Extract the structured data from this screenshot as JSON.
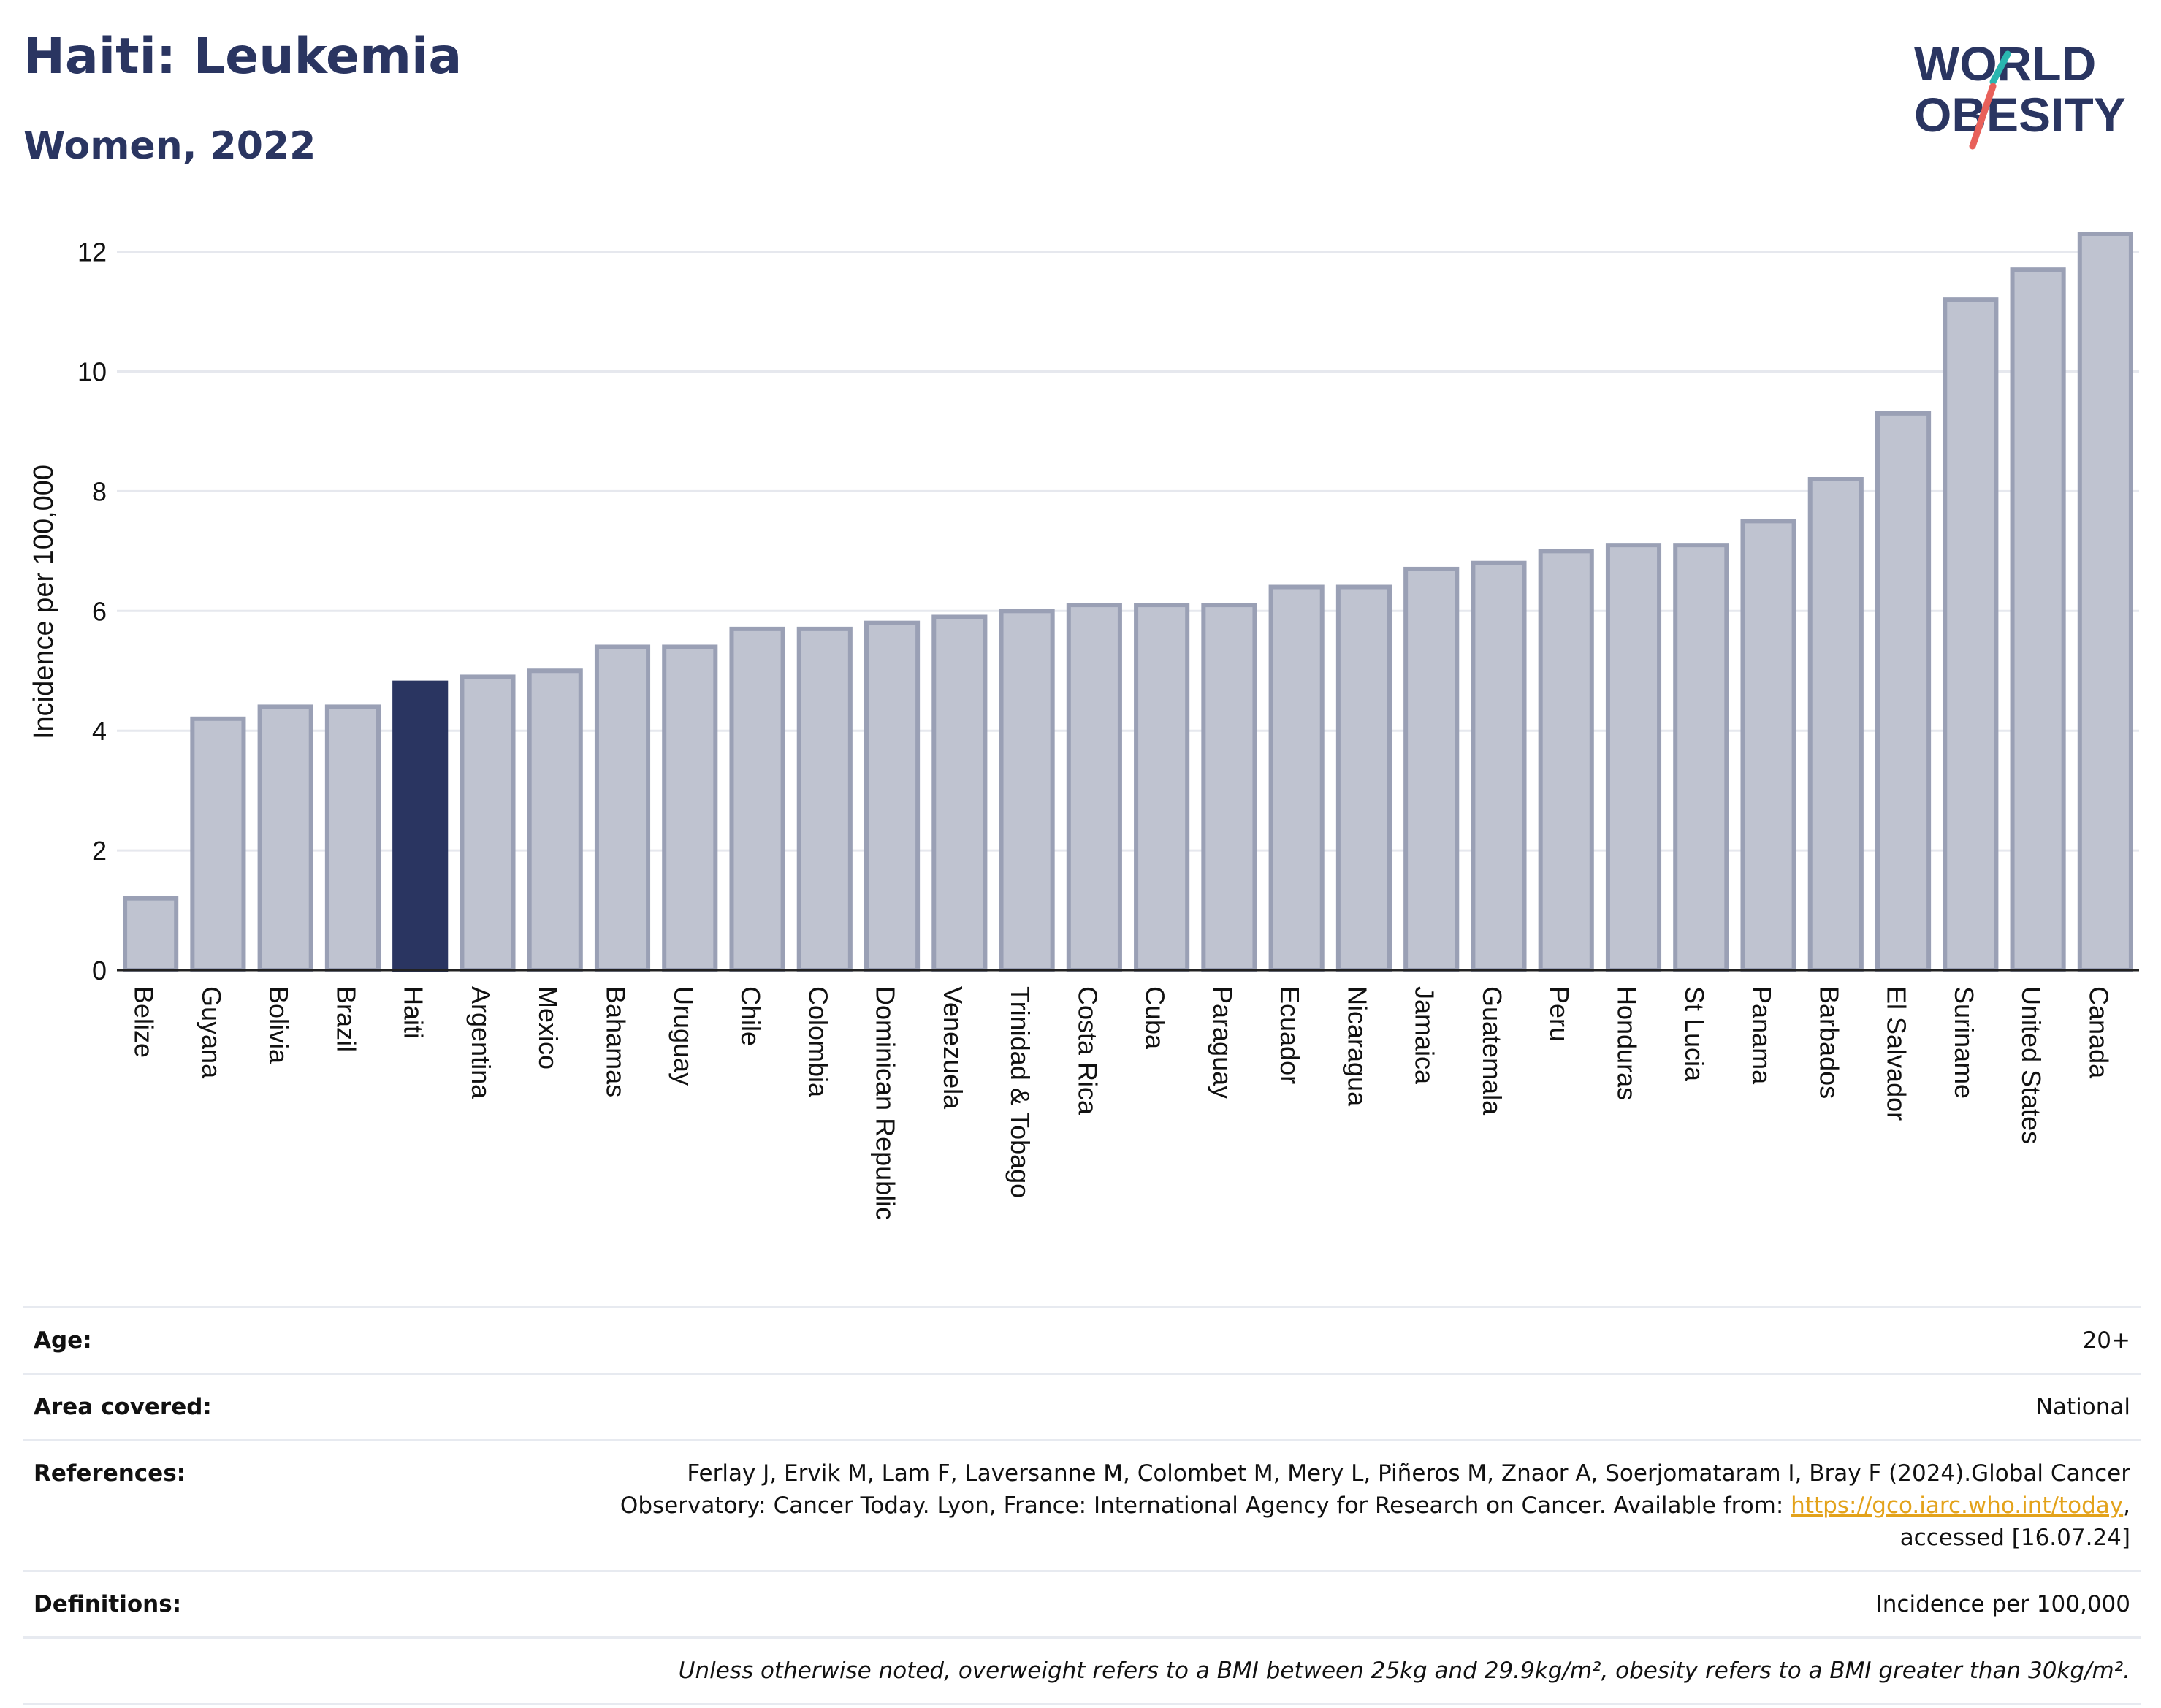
{
  "header": {
    "title": "Haiti: Leukemia",
    "subtitle": "Women, 2022",
    "logo_line1": "WORLD",
    "logo_line2": "OBESITY"
  },
  "colors": {
    "highlight_bar": "#2a3561",
    "other_bar": "#bfc3d0",
    "other_bar_border": "#9aa0b5",
    "title_text": "#2a3561",
    "link": "#e3a21a",
    "logo_teal": "#2ab6b0",
    "logo_red": "#e8605a"
  },
  "chart_data": {
    "type": "bar",
    "title": "Haiti: Leukemia",
    "subtitle": "Women, 2022",
    "xlabel": "",
    "ylabel": "Incidence per 100,000",
    "ylim": [
      0,
      12.3
    ],
    "yticks": [
      0,
      2,
      4,
      6,
      8,
      10,
      12
    ],
    "grid": true,
    "highlight": "Haiti",
    "categories": [
      "Belize",
      "Guyana",
      "Bolivia",
      "Brazil",
      "Haiti",
      "Argentina",
      "Mexico",
      "Bahamas",
      "Uruguay",
      "Chile",
      "Colombia",
      "Dominican Republic",
      "Venezuela",
      "Trinidad & Tobago",
      "Costa Rica",
      "Cuba",
      "Paraguay",
      "Ecuador",
      "Nicaragua",
      "Jamaica",
      "Guatemala",
      "Peru",
      "Honduras",
      "St Lucia",
      "Panama",
      "Barbados",
      "El Salvador",
      "Suriname",
      "United States",
      "Canada"
    ],
    "values": [
      1.2,
      4.2,
      4.4,
      4.4,
      4.8,
      4.9,
      5.0,
      5.4,
      5.4,
      5.7,
      5.7,
      5.8,
      5.9,
      6.0,
      6.1,
      6.1,
      6.1,
      6.4,
      6.4,
      6.7,
      6.8,
      7.0,
      7.1,
      7.1,
      7.5,
      8.2,
      9.3,
      11.2,
      11.7,
      12.3
    ]
  },
  "meta": {
    "age_label": "Age:",
    "age_value": "20+",
    "area_label": "Area covered:",
    "area_value": "National",
    "references_label": "References:",
    "references_text": "Ferlay J, Ervik M, Lam F, Laversanne M, Colombet M, Mery L, Piñeros M, Znaor A, Soerjomataram I, Bray F (2024).Global Cancer Observatory: Cancer Today. Lyon, France: International Agency for Research on Cancer. Available from: ",
    "references_link": "https://gco.iarc.who.int/today",
    "references_tail": ", accessed [16.07.24]",
    "definitions_label": "Definitions:",
    "definitions_value": "Incidence per 100,000",
    "note": "Unless otherwise noted, overweight refers to a BMI between 25kg and 29.9kg/m², obesity refers to a BMI greater than 30kg/m²."
  }
}
